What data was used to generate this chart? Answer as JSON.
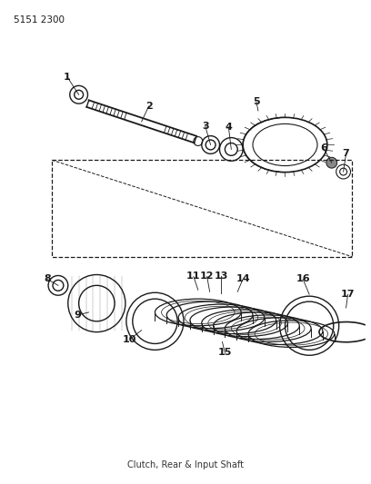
{
  "part_number": "5151 2300",
  "bg_color": "#ffffff",
  "line_color": "#1a1a1a",
  "fig_width": 4.08,
  "fig_height": 5.33,
  "dpi": 100,
  "title": "Clutch, Rear & Input Shaft"
}
